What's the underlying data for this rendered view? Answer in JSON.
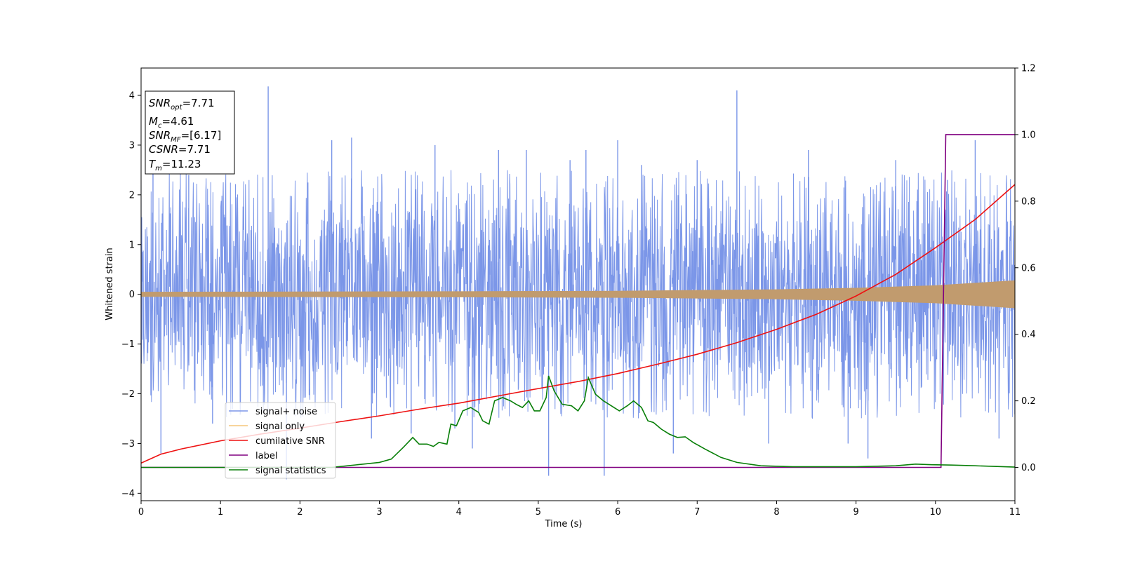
{
  "chart_data": {
    "type": "line",
    "xlabel": "Time (s)",
    "ylabel": "Whitened strain",
    "xlim": [
      0,
      11
    ],
    "ylim": [
      -4.15,
      4.55
    ],
    "y2lim": [
      -0.1,
      1.2
    ],
    "x_ticks": [
      0,
      1,
      2,
      3,
      4,
      5,
      6,
      7,
      8,
      9,
      10,
      11
    ],
    "y_ticks": [
      -4,
      -3,
      -2,
      -1,
      0,
      1,
      2,
      3,
      4
    ],
    "y2_ticks": [
      0.0,
      0.2,
      0.4,
      0.6,
      0.8,
      1.0,
      1.2
    ],
    "grid": false,
    "legend_position": "lower-left",
    "info_box": {
      "lines": [
        {
          "main": "SNR",
          "sub": "opt",
          "rest": "=7.71"
        },
        {
          "main": "M",
          "sub": "c",
          "rest": "=4.61"
        },
        {
          "main": "SNR",
          "sub": "MF",
          "rest": "=[6.17]"
        },
        {
          "main": "CSNR",
          "sub": "",
          "rest": "=7.71"
        },
        {
          "main": "T",
          "sub": "m",
          "rest": "=11.23"
        }
      ]
    },
    "series": [
      {
        "name": "signal+ noise",
        "color": "#7b96e8",
        "axis": "left",
        "noise_band": {
          "low": -1.5,
          "high": 1.5
        },
        "spikes": [
          {
            "x": 0.15,
            "y": 2.5
          },
          {
            "x": 0.25,
            "y": -3.2
          },
          {
            "x": 0.6,
            "y": 2.4
          },
          {
            "x": 0.9,
            "y": -2.6
          },
          {
            "x": 1.6,
            "y": 4.18
          },
          {
            "x": 1.83,
            "y": -3.72
          },
          {
            "x": 2.4,
            "y": 3.1
          },
          {
            "x": 2.65,
            "y": 3.15
          },
          {
            "x": 2.9,
            "y": -2.9
          },
          {
            "x": 3.4,
            "y": -2.8
          },
          {
            "x": 3.7,
            "y": 3.0
          },
          {
            "x": 3.95,
            "y": -2.7
          },
          {
            "x": 4.17,
            "y": -3.1
          },
          {
            "x": 4.5,
            "y": 2.9
          },
          {
            "x": 4.85,
            "y": 2.9
          },
          {
            "x": 5.13,
            "y": -3.65
          },
          {
            "x": 5.4,
            "y": 2.7
          },
          {
            "x": 5.6,
            "y": 2.9
          },
          {
            "x": 5.83,
            "y": -3.65
          },
          {
            "x": 6.0,
            "y": 3.1
          },
          {
            "x": 6.3,
            "y": 2.6
          },
          {
            "x": 6.7,
            "y": -3.2
          },
          {
            "x": 7.0,
            "y": 2.7
          },
          {
            "x": 7.5,
            "y": 4.1
          },
          {
            "x": 7.9,
            "y": -3.0
          },
          {
            "x": 8.4,
            "y": 2.9
          },
          {
            "x": 8.9,
            "y": -3.0
          },
          {
            "x": 9.15,
            "y": -3.3
          },
          {
            "x": 9.5,
            "y": 2.7
          },
          {
            "x": 10.15,
            "y": 2.3
          },
          {
            "x": 10.5,
            "y": 3.1
          },
          {
            "x": 10.8,
            "y": -2.9
          }
        ]
      },
      {
        "name": "signal only",
        "color": "#c19b6e",
        "axis": "left",
        "envelope": [
          [
            0,
            0.05
          ],
          [
            2,
            0.055
          ],
          [
            4,
            0.06
          ],
          [
            6,
            0.07
          ],
          [
            8,
            0.1
          ],
          [
            9,
            0.13
          ],
          [
            10,
            0.18
          ],
          [
            11,
            0.28
          ]
        ]
      },
      {
        "name": "cumilative SNR",
        "color": "#ee1111",
        "axis": "right",
        "points": [
          [
            0,
            0.013
          ],
          [
            0.25,
            0.04
          ],
          [
            0.5,
            0.055
          ],
          [
            1,
            0.08
          ],
          [
            1.5,
            0.1
          ],
          [
            2,
            0.118
          ],
          [
            2.5,
            0.137
          ],
          [
            3,
            0.155
          ],
          [
            3.5,
            0.175
          ],
          [
            4,
            0.193
          ],
          [
            4.5,
            0.215
          ],
          [
            5,
            0.237
          ],
          [
            5.5,
            0.258
          ],
          [
            6,
            0.282
          ],
          [
            6.5,
            0.31
          ],
          [
            7,
            0.34
          ],
          [
            7.5,
            0.375
          ],
          [
            8,
            0.415
          ],
          [
            8.5,
            0.46
          ],
          [
            9,
            0.515
          ],
          [
            9.5,
            0.58
          ],
          [
            10,
            0.66
          ],
          [
            10.5,
            0.745
          ],
          [
            11,
            0.85
          ]
        ]
      },
      {
        "name": "label",
        "color": "#800080",
        "axis": "right",
        "points": [
          [
            0,
            0.0
          ],
          [
            10.07,
            0.0
          ],
          [
            10.13,
            1.0
          ],
          [
            11,
            1.0
          ]
        ]
      },
      {
        "name": "signal statistics",
        "color": "#087f08",
        "axis": "right",
        "points": [
          [
            0,
            0.0
          ],
          [
            2.4,
            0.0
          ],
          [
            2.6,
            0.005
          ],
          [
            2.8,
            0.01
          ],
          [
            3.0,
            0.015
          ],
          [
            3.15,
            0.025
          ],
          [
            3.3,
            0.06
          ],
          [
            3.42,
            0.09
          ],
          [
            3.5,
            0.07
          ],
          [
            3.6,
            0.07
          ],
          [
            3.68,
            0.063
          ],
          [
            3.75,
            0.075
          ],
          [
            3.85,
            0.07
          ],
          [
            3.9,
            0.13
          ],
          [
            3.97,
            0.125
          ],
          [
            4.05,
            0.17
          ],
          [
            4.15,
            0.18
          ],
          [
            4.25,
            0.165
          ],
          [
            4.3,
            0.14
          ],
          [
            4.38,
            0.13
          ],
          [
            4.45,
            0.2
          ],
          [
            4.55,
            0.21
          ],
          [
            4.65,
            0.2
          ],
          [
            4.72,
            0.19
          ],
          [
            4.8,
            0.18
          ],
          [
            4.88,
            0.2
          ],
          [
            4.95,
            0.17
          ],
          [
            5.02,
            0.17
          ],
          [
            5.1,
            0.21
          ],
          [
            5.13,
            0.275
          ],
          [
            5.2,
            0.23
          ],
          [
            5.3,
            0.19
          ],
          [
            5.42,
            0.185
          ],
          [
            5.5,
            0.17
          ],
          [
            5.58,
            0.2
          ],
          [
            5.63,
            0.27
          ],
          [
            5.72,
            0.22
          ],
          [
            5.82,
            0.2
          ],
          [
            5.92,
            0.185
          ],
          [
            6.02,
            0.17
          ],
          [
            6.12,
            0.185
          ],
          [
            6.2,
            0.2
          ],
          [
            6.3,
            0.18
          ],
          [
            6.38,
            0.14
          ],
          [
            6.45,
            0.135
          ],
          [
            6.55,
            0.115
          ],
          [
            6.65,
            0.1
          ],
          [
            6.75,
            0.09
          ],
          [
            6.85,
            0.092
          ],
          [
            6.95,
            0.075
          ],
          [
            7.1,
            0.055
          ],
          [
            7.3,
            0.03
          ],
          [
            7.5,
            0.015
          ],
          [
            7.8,
            0.005
          ],
          [
            8.2,
            0.002
          ],
          [
            9.0,
            0.002
          ],
          [
            9.5,
            0.005
          ],
          [
            9.75,
            0.01
          ],
          [
            9.95,
            0.008
          ],
          [
            10.2,
            0.007
          ],
          [
            10.5,
            0.005
          ],
          [
            11,
            0.001
          ]
        ]
      }
    ]
  }
}
